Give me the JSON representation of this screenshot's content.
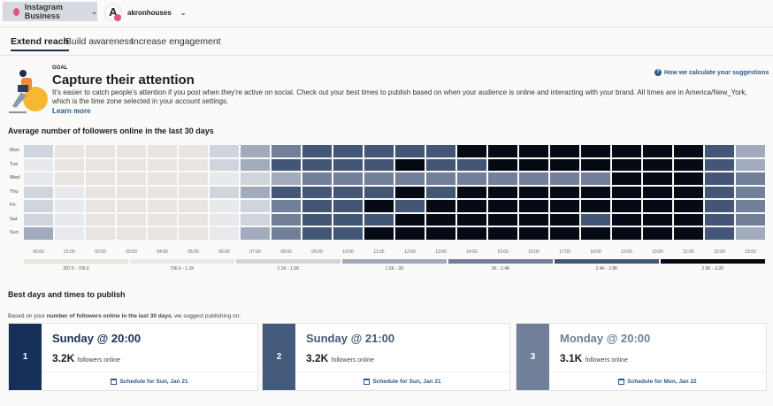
{
  "header": {
    "network": "Instagram Business",
    "account_initial": "A",
    "account": "akronhouses"
  },
  "tabs": [
    "Extend reach",
    "Build awareness",
    "Increase engagement"
  ],
  "goal": {
    "label": "GOAL",
    "title": "Capture their attention",
    "description": "It's easier to catch people's attention if you post when they're active on social. Check out your best times to publish based on when your audience is online and interacting with your brand. All times are in America/New_York, which is the time zone selected in your account settings.",
    "learn_more": "Learn more",
    "how_link": "How we calculate your suggestions"
  },
  "chart_data": {
    "type": "heatmap",
    "title": "Average number of followers online in the last 30 days",
    "rows": [
      "Mon",
      "Tue",
      "Wed",
      "Thu",
      "Fri",
      "Sat",
      "Sun"
    ],
    "columns": [
      "00:00",
      "01:00",
      "02:00",
      "03:00",
      "04:00",
      "05:00",
      "06:00",
      "07:00",
      "08:00",
      "09:00",
      "10:00",
      "11:00",
      "12:00",
      "13:00",
      "14:00",
      "15:00",
      "16:00",
      "17:00",
      "18:00",
      "19:00",
      "20:00",
      "21:00",
      "22:00",
      "23:00"
    ],
    "legend": [
      "287.6 - 706.6",
      "706.6 - 1.1K",
      "1.1K - 1.5K",
      "1.5K - 2K",
      "2K - 2.4K",
      "2.4K - 2.8K",
      "2.8K - 3.2K"
    ],
    "legend_colors": [
      "#e8e4e1",
      "#e8e9ec",
      "#d0d5dd",
      "#a2abbb",
      "#717f99",
      "#445676",
      "#050a14"
    ],
    "levels": [
      [
        2,
        0,
        0,
        0,
        0,
        0,
        2,
        3,
        4,
        5,
        5,
        5,
        5,
        5,
        6,
        6,
        6,
        6,
        6,
        6,
        6,
        6,
        5,
        3
      ],
      [
        1,
        0,
        0,
        0,
        0,
        0,
        2,
        3,
        5,
        5,
        5,
        5,
        6,
        5,
        5,
        6,
        6,
        6,
        6,
        6,
        6,
        6,
        5,
        3
      ],
      [
        1,
        0,
        0,
        0,
        0,
        0,
        1,
        2,
        3,
        4,
        4,
        4,
        4,
        4,
        4,
        4,
        4,
        4,
        4,
        6,
        6,
        6,
        5,
        4
      ],
      [
        2,
        1,
        0,
        0,
        0,
        0,
        2,
        3,
        5,
        5,
        5,
        5,
        6,
        5,
        6,
        6,
        6,
        6,
        6,
        6,
        6,
        6,
        5,
        4
      ],
      [
        2,
        1,
        0,
        0,
        0,
        0,
        1,
        2,
        4,
        5,
        5,
        6,
        5,
        6,
        6,
        6,
        6,
        6,
        6,
        6,
        6,
        6,
        5,
        4
      ],
      [
        2,
        1,
        0,
        0,
        0,
        0,
        1,
        2,
        4,
        5,
        5,
        5,
        6,
        6,
        6,
        6,
        6,
        6,
        5,
        6,
        6,
        6,
        5,
        4
      ],
      [
        3,
        1,
        0,
        0,
        0,
        0,
        1,
        3,
        4,
        5,
        5,
        6,
        6,
        6,
        6,
        6,
        6,
        6,
        6,
        6,
        6,
        6,
        5,
        3
      ]
    ]
  },
  "best": {
    "title": "Best days and times to publish",
    "intro_pre": "Based on your ",
    "intro_bold": "number of followers online in the last 30 days",
    "intro_post": ", we suggest publishing on:",
    "cards": [
      {
        "rank": "1",
        "title": "Sunday @ 20:00",
        "value": "3.2K",
        "unit": "followers online",
        "schedule": "Schedule for Sun, Jan 21",
        "color": "#17305a"
      },
      {
        "rank": "2",
        "title": "Sunday @ 21:00",
        "value": "3.2K",
        "unit": "followers online",
        "schedule": "Schedule for Sun, Jan 21",
        "color": "#445a7a"
      },
      {
        "rank": "3",
        "title": "Monday @ 20:00",
        "value": "3.1K",
        "unit": "followers online",
        "schedule": "Schedule for Mon, Jan 22",
        "color": "#717f99"
      }
    ]
  }
}
